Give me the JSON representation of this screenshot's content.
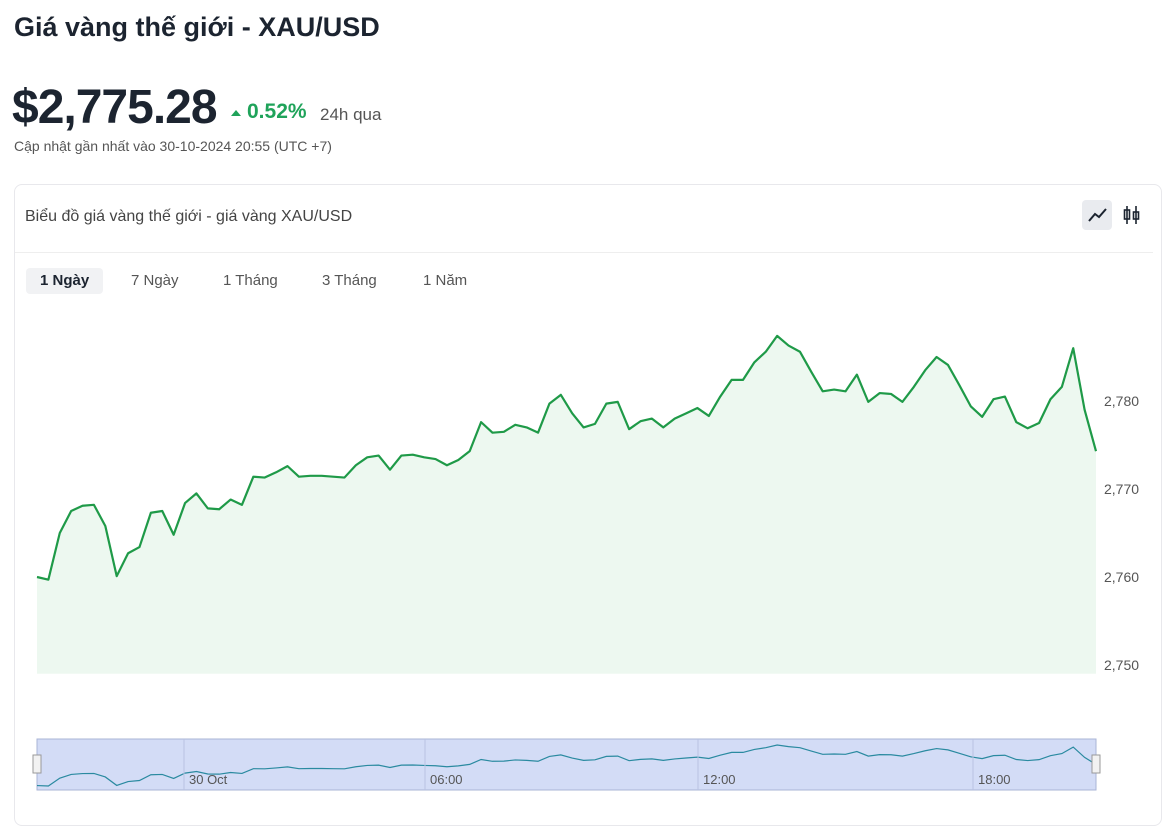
{
  "header": {
    "title": "Giá vàng thế giới - XAU/USD",
    "price": "$2,775.28",
    "change": "0.52%",
    "period": "24h qua",
    "updated": "Cập nhật gần nhất vào 30-10-2024 20:55 (UTC +7)"
  },
  "card": {
    "title": "Biểu đồ giá vàng thế giới - giá vàng XAU/USD",
    "tabs": [
      "1 Ngày",
      "7 Ngày",
      "1 Tháng",
      "3 Tháng",
      "1 Năm"
    ]
  },
  "chart_data": {
    "type": "line",
    "color": "#1f9a48",
    "fill": "#edf8f0",
    "values": [
      2760.0,
      2759.7,
      2765.0,
      2767.5,
      2768.1,
      2768.2,
      2765.8,
      2760.1,
      2762.7,
      2763.4,
      2767.3,
      2767.5,
      2764.8,
      2768.4,
      2769.5,
      2767.8,
      2767.7,
      2768.8,
      2768.2,
      2771.4,
      2771.3,
      2771.9,
      2772.6,
      2771.4,
      2771.5,
      2771.5,
      2771.4,
      2771.3,
      2772.7,
      2773.6,
      2773.8,
      2772.2,
      2773.8,
      2773.9,
      2773.6,
      2773.4,
      2772.7,
      2773.3,
      2774.3,
      2777.6,
      2776.4,
      2776.5,
      2777.3,
      2777.0,
      2776.4,
      2779.7,
      2780.7,
      2778.6,
      2777.0,
      2777.4,
      2779.7,
      2779.9,
      2776.8,
      2777.7,
      2778.0,
      2777.0,
      2778.0,
      2778.6,
      2779.2,
      2778.3,
      2780.5,
      2782.4,
      2782.4,
      2784.4,
      2785.6,
      2787.4,
      2786.3,
      2785.6,
      2783.3,
      2781.1,
      2781.3,
      2781.1,
      2783.0,
      2779.9,
      2780.9,
      2780.8,
      2779.9,
      2781.6,
      2783.5,
      2785.0,
      2784.1,
      2781.8,
      2779.4,
      2778.2,
      2780.2,
      2780.5,
      2777.6,
      2776.9,
      2777.5,
      2780.2,
      2781.6,
      2786.0,
      2779.0,
      2774.3
    ],
    "ylim": [
      2749,
      2792
    ],
    "yticks": [
      {
        "value": 2750,
        "label": "2,750"
      },
      {
        "value": 2760,
        "label": "2,760"
      },
      {
        "value": 2770,
        "label": "2,770"
      },
      {
        "value": 2780,
        "label": "2,780"
      }
    ],
    "navigator": {
      "ticks": [
        "30 Oct",
        "06:00",
        "12:00",
        "18:00"
      ]
    }
  }
}
